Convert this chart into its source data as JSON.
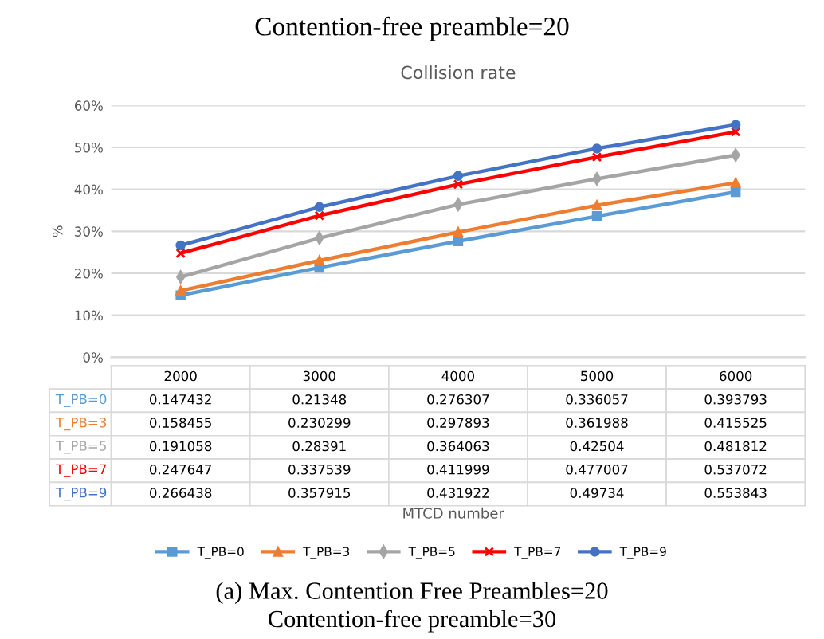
{
  "chart_data": {
    "type": "line",
    "title": "Contention-free preamble=20",
    "subtitle": "Collision rate",
    "ylabel": "%",
    "categories": [
      "2000",
      "3000",
      "4000",
      "5000",
      "6000"
    ],
    "series": [
      {
        "name": "T_PB=0",
        "color": "#5b9bd5",
        "marker": "square",
        "values": [
          0.147432,
          0.21348,
          0.276307,
          0.336057,
          0.393793
        ]
      },
      {
        "name": "T_PB=3",
        "color": "#ed7d31",
        "marker": "triangle",
        "values": [
          0.158455,
          0.230299,
          0.297893,
          0.361988,
          0.415525
        ]
      },
      {
        "name": "T_PB=5",
        "color": "#a5a5a5",
        "marker": "diamond",
        "values": [
          0.191058,
          0.28391,
          0.364063,
          0.42504,
          0.481812
        ]
      },
      {
        "name": "T_PB=7",
        "color": "#ff0000",
        "marker": "cross",
        "values": [
          0.247647,
          0.337539,
          0.411999,
          0.477007,
          0.537072
        ]
      },
      {
        "name": "T_PB=9",
        "color": "#4472c4",
        "marker": "circle",
        "values": [
          0.266438,
          0.357915,
          0.431922,
          0.49734,
          0.553843
        ]
      }
    ],
    "ylim": [
      0,
      0.6
    ],
    "yticks": [
      {
        "value": 0,
        "label": "0%"
      },
      {
        "value": 0.1,
        "label": "10%"
      },
      {
        "value": 0.2,
        "label": "20%"
      },
      {
        "value": 0.3,
        "label": "30%"
      },
      {
        "value": 0.4,
        "label": "40%"
      },
      {
        "value": 0.5,
        "label": "50%"
      },
      {
        "value": 0.6,
        "label": "60%"
      }
    ],
    "grid": "y",
    "legend": "bottom",
    "data_labels": true,
    "line_style": "solid",
    "annotations": [
      "MTCD number",
      "(a) Max. Contention Free Preambles=20",
      "Contention-free preamble=30"
    ]
  }
}
